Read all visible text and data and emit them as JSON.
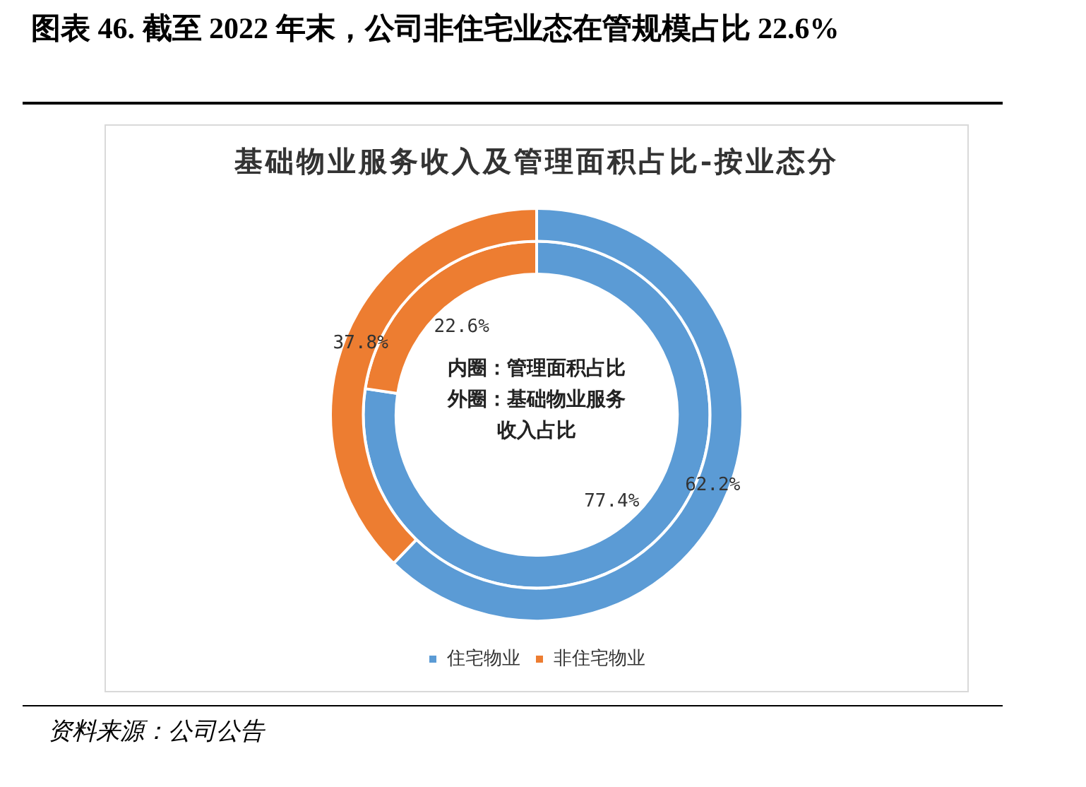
{
  "chart_data": {
    "type": "donut",
    "title": "图表 46. 截至 2022 年末，公司非住宅业态在管规模占比 22.6%",
    "subtitle": "基础物业服务收入及管理面积占比-按业态分",
    "categories": [
      "住宅物业",
      "非住宅物业"
    ],
    "colors": [
      "#5b9bd5",
      "#ed7d31"
    ],
    "series": [
      {
        "values": [
          77.4,
          22.6
        ],
        "value_labels": [
          "77.4%",
          "22.6%"
        ]
      },
      {
        "values": [
          62.2,
          37.8
        ],
        "value_labels": [
          "62.2%",
          "37.8%"
        ]
      }
    ],
    "legend": "bottom",
    "annotations": [
      "内圈：管理面积占比",
      "外圈：基础物业服务",
      "收入占比",
      "资料来源：公司公告"
    ]
  }
}
